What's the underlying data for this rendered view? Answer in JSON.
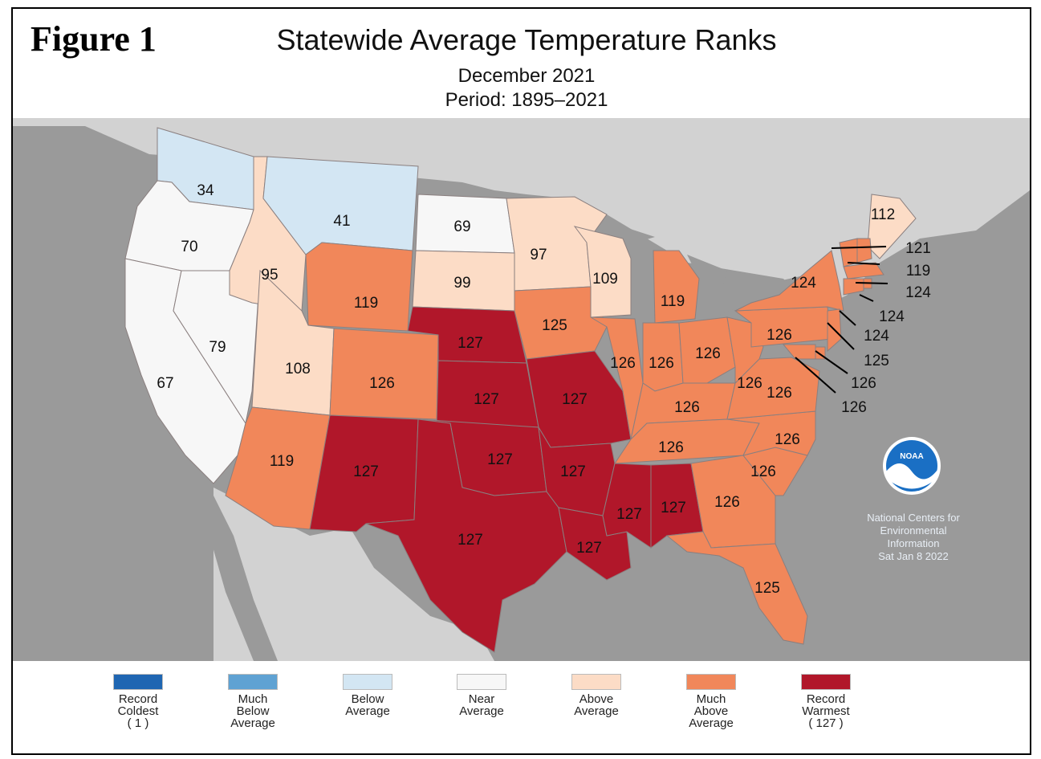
{
  "figure_label": "Figure 1",
  "title": "Statewide Average Temperature Ranks",
  "subtitle": "December 2021",
  "period": "Period: 1895–2021",
  "colors": {
    "record_coldest": "#1f66b2",
    "much_below": "#5fa2d3",
    "below": "#d3e6f3",
    "near": "#f7f7f7",
    "above": "#fcdcc6",
    "much_above": "#f1875a",
    "record_warmest": "#b1172a",
    "ocean": "#9a9a9a",
    "land_other": "#d2d2d2"
  },
  "legend": [
    {
      "key": "record_coldest",
      "lines": [
        "Record",
        "Coldest",
        "( 1 )"
      ]
    },
    {
      "key": "much_below",
      "lines": [
        "Much",
        "Below",
        "Average"
      ]
    },
    {
      "key": "below",
      "lines": [
        "Below",
        "Average"
      ]
    },
    {
      "key": "near",
      "lines": [
        "Near",
        "Average"
      ]
    },
    {
      "key": "above",
      "lines": [
        "Above",
        "Average"
      ]
    },
    {
      "key": "much_above",
      "lines": [
        "Much",
        "Above",
        "Average"
      ]
    },
    {
      "key": "record_warmest",
      "lines": [
        "Record",
        "Warmest",
        "( 127 )"
      ]
    }
  ],
  "states": [
    {
      "id": "WA",
      "rank": 34,
      "cat": "below"
    },
    {
      "id": "OR",
      "rank": 70,
      "cat": "near"
    },
    {
      "id": "CA",
      "rank": 67,
      "cat": "near"
    },
    {
      "id": "NV",
      "rank": 79,
      "cat": "near"
    },
    {
      "id": "ID",
      "rank": 95,
      "cat": "above"
    },
    {
      "id": "MT",
      "rank": 41,
      "cat": "below"
    },
    {
      "id": "WY",
      "rank": 119,
      "cat": "much_above"
    },
    {
      "id": "UT",
      "rank": 108,
      "cat": "above"
    },
    {
      "id": "CO",
      "rank": 126,
      "cat": "much_above"
    },
    {
      "id": "AZ",
      "rank": 119,
      "cat": "much_above"
    },
    {
      "id": "NM",
      "rank": 127,
      "cat": "record_warmest"
    },
    {
      "id": "ND",
      "rank": 69,
      "cat": "near"
    },
    {
      "id": "SD",
      "rank": 99,
      "cat": "above"
    },
    {
      "id": "NE",
      "rank": 127,
      "cat": "record_warmest"
    },
    {
      "id": "KS",
      "rank": 127,
      "cat": "record_warmest"
    },
    {
      "id": "OK",
      "rank": 127,
      "cat": "record_warmest"
    },
    {
      "id": "TX",
      "rank": 127,
      "cat": "record_warmest"
    },
    {
      "id": "MN",
      "rank": 97,
      "cat": "above"
    },
    {
      "id": "IA",
      "rank": 125,
      "cat": "much_above"
    },
    {
      "id": "MO",
      "rank": 127,
      "cat": "record_warmest"
    },
    {
      "id": "AR",
      "rank": 127,
      "cat": "record_warmest"
    },
    {
      "id": "LA",
      "rank": 127,
      "cat": "record_warmest"
    },
    {
      "id": "WI",
      "rank": 109,
      "cat": "above"
    },
    {
      "id": "IL",
      "rank": 126,
      "cat": "much_above"
    },
    {
      "id": "MI",
      "rank": 119,
      "cat": "much_above"
    },
    {
      "id": "IN",
      "rank": 126,
      "cat": "much_above"
    },
    {
      "id": "OH",
      "rank": 126,
      "cat": "much_above"
    },
    {
      "id": "KY",
      "rank": 126,
      "cat": "much_above"
    },
    {
      "id": "TN",
      "rank": 126,
      "cat": "much_above"
    },
    {
      "id": "MS",
      "rank": 127,
      "cat": "record_warmest"
    },
    {
      "id": "AL",
      "rank": 127,
      "cat": "record_warmest"
    },
    {
      "id": "GA",
      "rank": 126,
      "cat": "much_above"
    },
    {
      "id": "FL",
      "rank": 125,
      "cat": "much_above"
    },
    {
      "id": "SC",
      "rank": 126,
      "cat": "much_above"
    },
    {
      "id": "NC",
      "rank": 126,
      "cat": "much_above"
    },
    {
      "id": "VA",
      "rank": 126,
      "cat": "much_above"
    },
    {
      "id": "WV",
      "rank": 126,
      "cat": "much_above"
    },
    {
      "id": "PA",
      "rank": 126,
      "cat": "much_above"
    },
    {
      "id": "NY",
      "rank": 124,
      "cat": "much_above"
    },
    {
      "id": "ME",
      "rank": 112,
      "cat": "above"
    },
    {
      "id": "NH",
      "rank": 121,
      "cat": "much_above"
    },
    {
      "id": "VT",
      "rank": 119,
      "cat": "much_above"
    },
    {
      "id": "MA",
      "rank": 124,
      "cat": "much_above"
    },
    {
      "id": "RI",
      "rank": 124,
      "cat": "much_above"
    },
    {
      "id": "CT",
      "rank": 124,
      "cat": "much_above"
    },
    {
      "id": "NJ",
      "rank": 125,
      "cat": "much_above"
    },
    {
      "id": "DE",
      "rank": 126,
      "cat": "much_above"
    },
    {
      "id": "MD",
      "rank": 126,
      "cat": "much_above"
    }
  ],
  "noaa": {
    "logo_text": "NOAA",
    "lines": [
      "National Centers for",
      "Environmental",
      "Information",
      "Sat Jan  8 2022"
    ]
  }
}
